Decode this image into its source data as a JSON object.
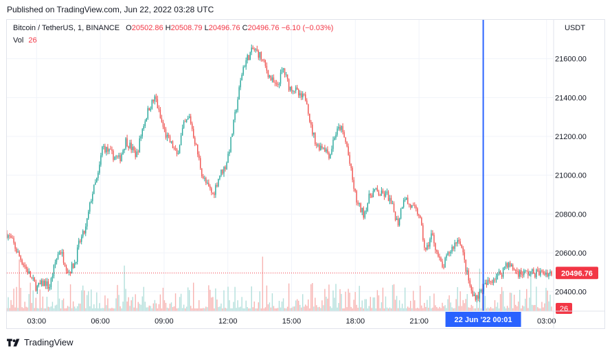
{
  "published": "Published on TradingView.com, Jun 22, 2022 03:28 UTC",
  "legend": {
    "symbol": "Bitcoin / TetherUS, 1, BINANCE",
    "o_label": "O",
    "o_value": "20502.86",
    "h_label": "H",
    "h_value": "20508.79",
    "l_label": "L",
    "l_value": "20496.76",
    "c_label": "C",
    "c_value": "20496.76",
    "change": "−6.10 (−0.03%)",
    "vol_label": "Vol",
    "vol_value": "26"
  },
  "currency": "USDT",
  "footer": {
    "brand": "TradingView"
  },
  "colors": {
    "up": "#26a69a",
    "down": "#ef5350",
    "crosshair": "#2962ff",
    "price_tag": "#f23645",
    "vol_up": "#b2dfdb",
    "vol_down": "#f7b2b0"
  },
  "chart_data": {
    "type": "line",
    "subtype": "candlestick",
    "ylim": [
      20300,
      21800
    ],
    "y_ticks": [
      20400,
      20600,
      20800,
      21000,
      21200,
      21400,
      21600
    ],
    "y_tick_labels": [
      "20400.00",
      "20600.00",
      "20800.00",
      "21000.00",
      "21200.00",
      "21400.00",
      "21600.00"
    ],
    "xlim": [
      1.6,
      27.3
    ],
    "x_ticks": [
      3,
      6,
      9,
      12,
      15,
      18,
      21,
      27
    ],
    "x_tick_labels": [
      "03:00",
      "06:00",
      "09:00",
      "12:00",
      "15:00",
      "18:00",
      "21:00",
      "03:00"
    ],
    "crosshair": {
      "x": 24.02,
      "label": "22 Jun '22   00:01"
    },
    "last_price": {
      "value": 20496.76,
      "label": "20496.76"
    },
    "last_volume": {
      "label": "26"
    },
    "price_path": {
      "x": [
        1.6,
        1.9,
        2.1,
        2.5,
        2.7,
        3.0,
        3.4,
        3.6,
        3.9,
        4.1,
        4.5,
        4.8,
        5.0,
        5.3,
        5.6,
        5.9,
        6.1,
        6.4,
        6.6,
        6.9,
        7.2,
        7.4,
        7.7,
        8.0,
        8.3,
        8.6,
        8.8,
        9.1,
        9.4,
        9.6,
        9.9,
        10.2,
        10.5,
        10.8,
        11.0,
        11.3,
        11.6,
        11.9,
        12.1,
        12.4,
        12.7,
        12.9,
        13.2,
        13.5,
        13.8,
        14.0,
        14.3,
        14.6,
        14.9,
        15.1,
        15.4,
        15.7,
        15.9,
        16.2,
        16.5,
        16.8,
        17.0,
        17.3,
        17.6,
        17.9,
        18.1,
        18.4,
        18.7,
        18.9,
        19.2,
        19.5,
        19.8,
        20.0,
        20.3,
        20.5,
        20.8,
        21.0,
        21.3,
        21.6,
        21.9,
        22.1,
        22.4,
        22.7,
        22.9,
        23.2,
        23.5,
        23.8,
        24.0,
        24.3,
        24.6,
        24.9,
        25.1,
        25.4,
        25.7,
        25.9,
        26.2,
        26.5,
        26.7,
        27.0,
        27.3
      ],
      "close": [
        20700,
        20650,
        20600,
        20520,
        20480,
        20420,
        20450,
        20420,
        20560,
        20620,
        20500,
        20550,
        20650,
        20720,
        20900,
        21000,
        21150,
        21120,
        21100,
        21080,
        21180,
        21150,
        21100,
        21250,
        21350,
        21400,
        21300,
        21200,
        21150,
        21100,
        21250,
        21300,
        21150,
        21000,
        20950,
        20900,
        21000,
        21050,
        21150,
        21350,
        21550,
        21600,
        21650,
        21620,
        21550,
        21500,
        21450,
        21550,
        21450,
        21450,
        21400,
        21400,
        21250,
        21150,
        21150,
        21100,
        21200,
        21250,
        21150,
        20950,
        20850,
        20800,
        20900,
        20920,
        20900,
        20900,
        20820,
        20750,
        20900,
        20850,
        20820,
        20800,
        20600,
        20700,
        20580,
        20520,
        20600,
        20650,
        20680,
        20520,
        20380,
        20380,
        20420,
        20450,
        20480,
        20500,
        20550,
        20520,
        20497,
        20497,
        20497,
        20497,
        20497,
        20497,
        20497
      ]
    },
    "volume_ylim": [
      0,
      450
    ]
  }
}
